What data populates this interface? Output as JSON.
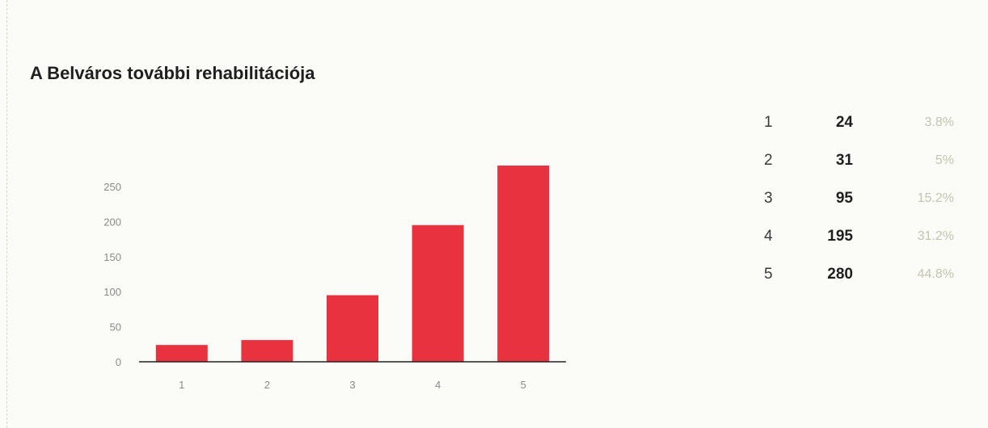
{
  "page": {
    "title": "A Belváros további rehabilitációja"
  },
  "chart_data": {
    "type": "bar",
    "title": "A Belváros további rehabilitációja",
    "categories": [
      "1",
      "2",
      "3",
      "4",
      "5"
    ],
    "values": [
      24,
      31,
      95,
      195,
      280
    ],
    "ylim": [
      0,
      300
    ],
    "yticks": [
      "0",
      "50",
      "100",
      "150",
      "200",
      "250"
    ],
    "xlabel": "",
    "ylabel": "",
    "grid": false,
    "bar_color": "#e8323f"
  },
  "summary": {
    "rows": [
      {
        "category": "1",
        "count": "24",
        "percent": "3.8%"
      },
      {
        "category": "2",
        "count": "31",
        "percent": "5%"
      },
      {
        "category": "3",
        "count": "95",
        "percent": "15.2%"
      },
      {
        "category": "4",
        "count": "195",
        "percent": "31.2%"
      },
      {
        "category": "5",
        "count": "280",
        "percent": "44.8%"
      }
    ]
  }
}
